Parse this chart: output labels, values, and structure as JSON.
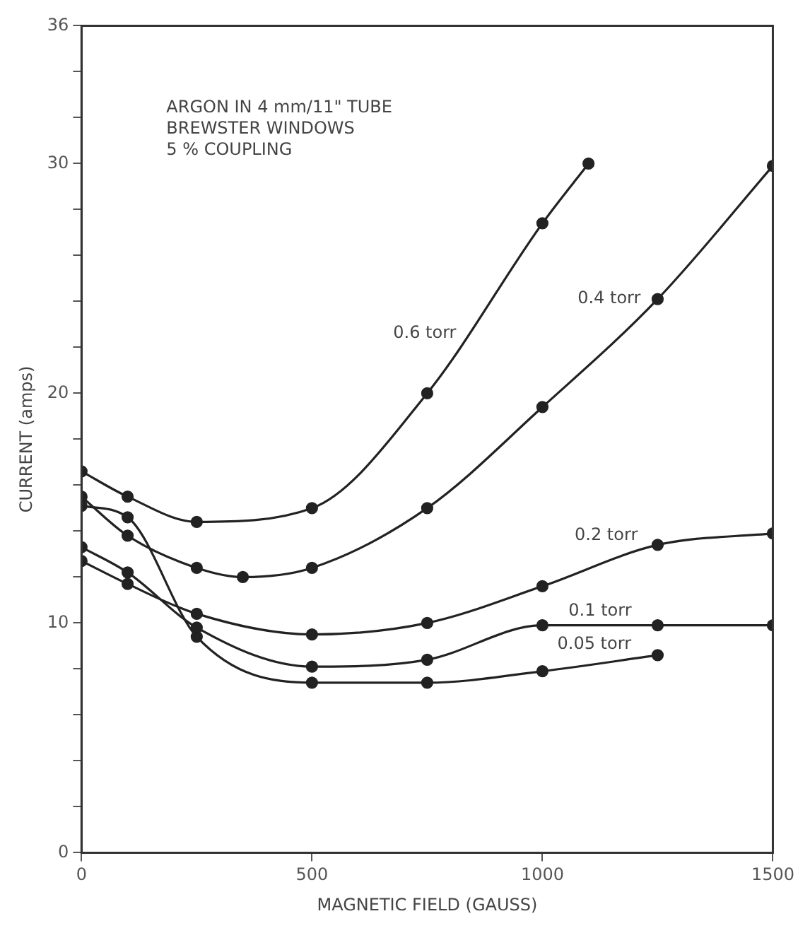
{
  "chart_data": {
    "type": "line",
    "xlabel": "MAGNETIC FIELD (GAUSS)",
    "ylabel": "CURRENT (amps)",
    "annotations": [
      "ARGON IN 4 mm/11\" TUBE",
      "BREWSTER WINDOWS",
      "5 % COUPLING"
    ],
    "xlim": [
      0,
      1500
    ],
    "xticks": [
      0,
      500,
      1000,
      1500
    ],
    "ylim": [
      0,
      36
    ],
    "yticks": [
      0,
      {
        "value": 2,
        "label": null
      },
      {
        "value": 4,
        "label": null
      },
      {
        "value": 6,
        "label": null
      },
      {
        "value": 8,
        "label": null
      },
      10,
      {
        "value": 12,
        "label": null
      },
      {
        "value": 14,
        "label": null
      },
      {
        "value": 16,
        "label": null
      },
      {
        "value": 18,
        "label": null
      },
      20,
      {
        "value": 22,
        "label": null
      },
      {
        "value": 24,
        "label": null
      },
      {
        "value": 26,
        "label": null
      },
      {
        "value": 28,
        "label": null
      },
      30,
      {
        "value": 32,
        "label": null
      },
      {
        "value": 34,
        "label": null
      },
      36
    ],
    "grid": false,
    "legend": false,
    "marker": "circle",
    "line_style": "solid",
    "series": [
      {
        "name": "0.6 torr",
        "color": "#222222",
        "x": [
          0,
          100,
          250,
          500,
          750,
          1000,
          1100
        ],
        "values": [
          16.6,
          15.5,
          14.4,
          15.0,
          20.0,
          27.4,
          30.0
        ]
      },
      {
        "name": "0.4 torr",
        "color": "#222222",
        "x": [
          0,
          100,
          250,
          350,
          500,
          750,
          1000,
          1250,
          1500
        ],
        "values": [
          15.5,
          13.8,
          12.4,
          12.0,
          12.4,
          15.0,
          19.4,
          24.1,
          29.9
        ]
      },
      {
        "name": "0.2 torr",
        "color": "#222222",
        "x": [
          0,
          100,
          250,
          500,
          750,
          1000,
          1250,
          1500
        ],
        "values": [
          12.7,
          11.7,
          10.4,
          9.5,
          10.0,
          11.6,
          13.4,
          13.9
        ]
      },
      {
        "name": "0.1 torr",
        "color": "#222222",
        "x": [
          0,
          100,
          250,
          500,
          750,
          1000,
          1250,
          1500
        ],
        "values": [
          13.3,
          12.2,
          9.8,
          8.1,
          8.4,
          9.9,
          9.9,
          9.9
        ]
      },
      {
        "name": "0.05 torr",
        "color": "#222222",
        "x": [
          0,
          100,
          250,
          500,
          750,
          1000,
          1250
        ],
        "values": [
          15.1,
          14.6,
          9.4,
          7.4,
          7.4,
          7.9,
          8.6
        ]
      }
    ]
  }
}
